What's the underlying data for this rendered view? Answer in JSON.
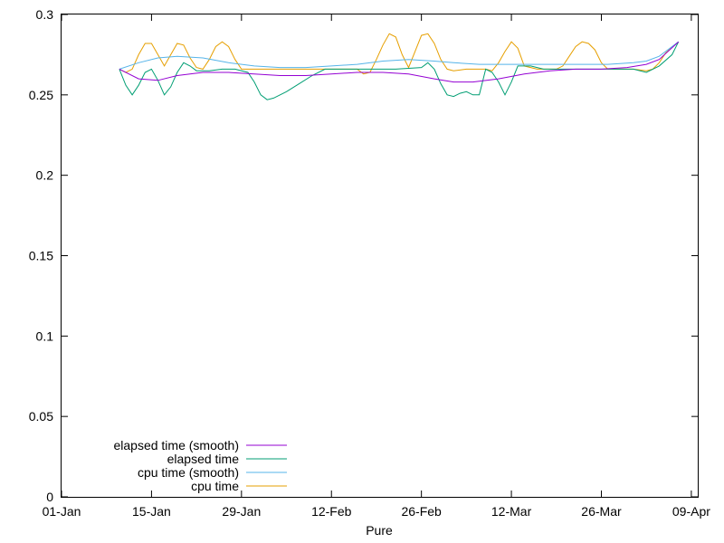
{
  "chart_data": {
    "type": "line",
    "title": "",
    "xlabel": "Pure",
    "ylabel": "",
    "xlim": [
      "2000-01-01",
      "2000-04-09"
    ],
    "ylim": [
      0,
      0.3
    ],
    "x_ticks": [
      "01-Jan",
      "15-Jan",
      "29-Jan",
      "12-Feb",
      "26-Feb",
      "12-Mar",
      "26-Mar",
      "09-Apr"
    ],
    "y_ticks": [
      "0",
      "0.05",
      "0.1",
      "0.15",
      "0.2",
      "0.25",
      "0.3"
    ],
    "y_tick_values": [
      0,
      0.05,
      0.1,
      0.15,
      0.2,
      0.25,
      0.3
    ],
    "grid": false,
    "legend_position": "bottom-left",
    "series": [
      {
        "name": "elapsed time (smooth)",
        "color": "#9400d3",
        "points": [
          [
            "2000-01-10",
            0.266
          ],
          [
            "2000-01-13",
            0.26
          ],
          [
            "2000-01-16",
            0.259
          ],
          [
            "2000-01-19",
            0.262
          ],
          [
            "2000-01-23",
            0.264
          ],
          [
            "2000-01-27",
            0.264
          ],
          [
            "2000-01-31",
            0.263
          ],
          [
            "2000-02-04",
            0.262
          ],
          [
            "2000-02-08",
            0.262
          ],
          [
            "2000-02-12",
            0.263
          ],
          [
            "2000-02-16",
            0.264
          ],
          [
            "2000-02-20",
            0.264
          ],
          [
            "2000-02-24",
            0.263
          ],
          [
            "2000-02-28",
            0.26
          ],
          [
            "2000-03-02",
            0.258
          ],
          [
            "2000-03-05",
            0.258
          ],
          [
            "2000-03-09",
            0.26
          ],
          [
            "2000-03-13",
            0.263
          ],
          [
            "2000-03-17",
            0.265
          ],
          [
            "2000-03-21",
            0.266
          ],
          [
            "2000-03-25",
            0.266
          ],
          [
            "2000-03-29",
            0.267
          ],
          [
            "2000-04-01",
            0.269
          ],
          [
            "2000-04-03",
            0.272
          ],
          [
            "2000-04-06",
            0.283
          ]
        ]
      },
      {
        "name": "elapsed time",
        "color": "#009e73",
        "points": [
          [
            "2000-01-10",
            0.266
          ],
          [
            "2000-01-11",
            0.256
          ],
          [
            "2000-01-12",
            0.25
          ],
          [
            "2000-01-13",
            0.256
          ],
          [
            "2000-01-14",
            0.264
          ],
          [
            "2000-01-15",
            0.266
          ],
          [
            "2000-01-16",
            0.259
          ],
          [
            "2000-01-17",
            0.25
          ],
          [
            "2000-01-18",
            0.255
          ],
          [
            "2000-01-19",
            0.264
          ],
          [
            "2000-01-20",
            0.27
          ],
          [
            "2000-01-21",
            0.268
          ],
          [
            "2000-01-22",
            0.265
          ],
          [
            "2000-01-24",
            0.265
          ],
          [
            "2000-01-26",
            0.266
          ],
          [
            "2000-01-28",
            0.266
          ],
          [
            "2000-01-30",
            0.264
          ],
          [
            "2000-01-31",
            0.258
          ],
          [
            "2000-02-01",
            0.25
          ],
          [
            "2000-02-02",
            0.247
          ],
          [
            "2000-02-03",
            0.248
          ],
          [
            "2000-02-05",
            0.252
          ],
          [
            "2000-02-07",
            0.257
          ],
          [
            "2000-02-09",
            0.262
          ],
          [
            "2000-02-11",
            0.266
          ],
          [
            "2000-02-14",
            0.266
          ],
          [
            "2000-02-18",
            0.266
          ],
          [
            "2000-02-22",
            0.266
          ],
          [
            "2000-02-26",
            0.267
          ],
          [
            "2000-02-27",
            0.27
          ],
          [
            "2000-02-28",
            0.266
          ],
          [
            "2000-02-29",
            0.257
          ],
          [
            "2000-03-01",
            0.25
          ],
          [
            "2000-03-02",
            0.249
          ],
          [
            "2000-03-03",
            0.251
          ],
          [
            "2000-03-04",
            0.252
          ],
          [
            "2000-03-05",
            0.25
          ],
          [
            "2000-03-06",
            0.25
          ],
          [
            "2000-03-07",
            0.266
          ],
          [
            "2000-03-08",
            0.264
          ],
          [
            "2000-03-09",
            0.258
          ],
          [
            "2000-03-10",
            0.25
          ],
          [
            "2000-03-11",
            0.258
          ],
          [
            "2000-03-12",
            0.268
          ],
          [
            "2000-03-14",
            0.268
          ],
          [
            "2000-03-16",
            0.266
          ],
          [
            "2000-03-19",
            0.266
          ],
          [
            "2000-03-23",
            0.266
          ],
          [
            "2000-03-27",
            0.266
          ],
          [
            "2000-03-30",
            0.266
          ],
          [
            "2000-04-01",
            0.264
          ],
          [
            "2000-04-03",
            0.268
          ],
          [
            "2000-04-05",
            0.275
          ],
          [
            "2000-04-06",
            0.283
          ]
        ]
      },
      {
        "name": "cpu time (smooth)",
        "color": "#56b4e9",
        "points": [
          [
            "2000-01-10",
            0.266
          ],
          [
            "2000-01-13",
            0.27
          ],
          [
            "2000-01-16",
            0.273
          ],
          [
            "2000-01-19",
            0.274
          ],
          [
            "2000-01-23",
            0.273
          ],
          [
            "2000-01-27",
            0.27
          ],
          [
            "2000-01-31",
            0.268
          ],
          [
            "2000-02-04",
            0.267
          ],
          [
            "2000-02-08",
            0.267
          ],
          [
            "2000-02-12",
            0.268
          ],
          [
            "2000-02-16",
            0.269
          ],
          [
            "2000-02-20",
            0.271
          ],
          [
            "2000-02-24",
            0.272
          ],
          [
            "2000-02-28",
            0.271
          ],
          [
            "2000-03-02",
            0.27
          ],
          [
            "2000-03-06",
            0.269
          ],
          [
            "2000-03-10",
            0.269
          ],
          [
            "2000-03-14",
            0.269
          ],
          [
            "2000-03-18",
            0.269
          ],
          [
            "2000-03-22",
            0.269
          ],
          [
            "2000-03-26",
            0.269
          ],
          [
            "2000-03-30",
            0.27
          ],
          [
            "2000-04-01",
            0.271
          ],
          [
            "2000-04-03",
            0.274
          ],
          [
            "2000-04-06",
            0.283
          ]
        ]
      },
      {
        "name": "cpu time",
        "color": "#e69f00",
        "points": [
          [
            "2000-01-10",
            0.266
          ],
          [
            "2000-01-11",
            0.264
          ],
          [
            "2000-01-12",
            0.266
          ],
          [
            "2000-01-13",
            0.275
          ],
          [
            "2000-01-14",
            0.282
          ],
          [
            "2000-01-15",
            0.282
          ],
          [
            "2000-01-16",
            0.275
          ],
          [
            "2000-01-17",
            0.268
          ],
          [
            "2000-01-18",
            0.275
          ],
          [
            "2000-01-19",
            0.282
          ],
          [
            "2000-01-20",
            0.281
          ],
          [
            "2000-01-21",
            0.273
          ],
          [
            "2000-01-22",
            0.267
          ],
          [
            "2000-01-23",
            0.266
          ],
          [
            "2000-01-24",
            0.272
          ],
          [
            "2000-01-25",
            0.28
          ],
          [
            "2000-01-26",
            0.283
          ],
          [
            "2000-01-27",
            0.28
          ],
          [
            "2000-01-28",
            0.272
          ],
          [
            "2000-01-29",
            0.266
          ],
          [
            "2000-01-30",
            0.266
          ],
          [
            "2000-02-01",
            0.266
          ],
          [
            "2000-02-04",
            0.266
          ],
          [
            "2000-02-08",
            0.266
          ],
          [
            "2000-02-12",
            0.266
          ],
          [
            "2000-02-14",
            0.266
          ],
          [
            "2000-02-16",
            0.266
          ],
          [
            "2000-02-17",
            0.263
          ],
          [
            "2000-02-18",
            0.264
          ],
          [
            "2000-02-19",
            0.272
          ],
          [
            "2000-02-20",
            0.281
          ],
          [
            "2000-02-21",
            0.288
          ],
          [
            "2000-02-22",
            0.286
          ],
          [
            "2000-02-23",
            0.275
          ],
          [
            "2000-02-24",
            0.267
          ],
          [
            "2000-02-25",
            0.277
          ],
          [
            "2000-02-26",
            0.287
          ],
          [
            "2000-02-27",
            0.288
          ],
          [
            "2000-02-28",
            0.282
          ],
          [
            "2000-02-29",
            0.272
          ],
          [
            "2000-03-01",
            0.266
          ],
          [
            "2000-03-02",
            0.265
          ],
          [
            "2000-03-04",
            0.266
          ],
          [
            "2000-03-06",
            0.266
          ],
          [
            "2000-03-07",
            0.266
          ],
          [
            "2000-03-08",
            0.265
          ],
          [
            "2000-03-09",
            0.27
          ],
          [
            "2000-03-10",
            0.277
          ],
          [
            "2000-03-11",
            0.283
          ],
          [
            "2000-03-12",
            0.279
          ],
          [
            "2000-03-13",
            0.268
          ],
          [
            "2000-03-15",
            0.266
          ],
          [
            "2000-03-17",
            0.266
          ],
          [
            "2000-03-18",
            0.266
          ],
          [
            "2000-03-19",
            0.268
          ],
          [
            "2000-03-20",
            0.274
          ],
          [
            "2000-03-21",
            0.28
          ],
          [
            "2000-03-22",
            0.283
          ],
          [
            "2000-03-23",
            0.282
          ],
          [
            "2000-03-24",
            0.278
          ],
          [
            "2000-03-25",
            0.27
          ],
          [
            "2000-03-26",
            0.266
          ],
          [
            "2000-03-28",
            0.266
          ],
          [
            "2000-03-30",
            0.266
          ],
          [
            "2000-04-01",
            0.265
          ],
          [
            "2000-04-02",
            0.266
          ],
          [
            "2000-04-03",
            0.27
          ],
          [
            "2000-04-04",
            0.276
          ],
          [
            "2000-04-06",
            0.283
          ]
        ]
      }
    ]
  }
}
